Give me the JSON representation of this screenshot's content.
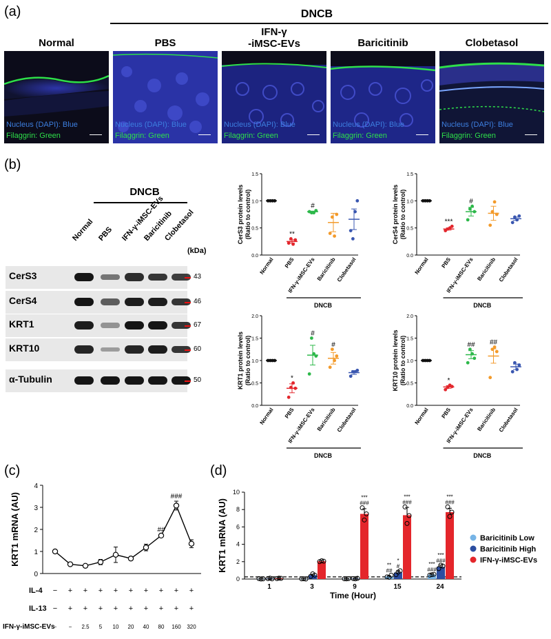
{
  "panel_labels": {
    "a": "(a)",
    "b": "(b)",
    "c": "(c)",
    "d": "(d)"
  },
  "panel_a": {
    "group_label": "DNCB",
    "columns": [
      "Normal",
      "PBS",
      "IFN-γ\n-iMSC-EVs",
      "Baricitinib",
      "Clobetasol"
    ],
    "caption_nucleus": "Nucleus (DAPI): Blue",
    "caption_filaggrin": "Filaggrin: Green",
    "scalebar": "100 μm"
  },
  "panel_b_blot": {
    "group_label": "DNCB",
    "lanes": [
      "Normal",
      "PBS",
      "IFN-γ-iMSC-EVs",
      "Baricitinib",
      "Clobetasol"
    ],
    "kda_label": "(kDa)",
    "rows": [
      {
        "name": "CerS3",
        "kda": "43",
        "intensity": [
          1.0,
          0.4,
          0.85,
          0.8,
          0.75
        ]
      },
      {
        "name": "CerS4",
        "kda": "46",
        "intensity": [
          1.0,
          0.55,
          0.95,
          0.95,
          0.8
        ]
      },
      {
        "name": "KRT1",
        "kda": "67",
        "intensity": [
          0.95,
          0.2,
          1.0,
          1.0,
          0.8
        ]
      },
      {
        "name": "KRT10",
        "kda": "60",
        "intensity": [
          0.9,
          0.15,
          0.9,
          0.95,
          0.8
        ]
      },
      {
        "name": "α-Tubulin",
        "kda": "50",
        "intensity": [
          1.0,
          1.0,
          1.0,
          1.0,
          1.0
        ]
      }
    ]
  },
  "colors": {
    "normal": "#111111",
    "pbs": "#e3262c",
    "ifn": "#2db84a",
    "bari": "#f39a2a",
    "clob": "#3a57b0",
    "bari_low": "#76b4e6",
    "bari_high": "#2b4da0",
    "ifn_bar": "#e4262b"
  },
  "chart_data": [
    {
      "type": "scatter",
      "id": "cers3",
      "ylabel": "CerS3 protein levels\n(Ratio to control)",
      "categories": [
        "Normal",
        "PBS",
        "IFN-γ-iMSC-EVs",
        "Baricitinib",
        "Clobetasol"
      ],
      "yticks": [
        "0.0",
        "0.5",
        "1.0",
        "1.5"
      ],
      "ylim": [
        0,
        1.5
      ],
      "group_label": "DNCB",
      "points": [
        [
          1,
          1,
          1,
          1
        ],
        [
          0.22,
          0.3,
          0.2,
          0.28
        ],
        [
          0.8,
          0.78,
          0.78,
          0.82
        ],
        [
          0.4,
          0.7,
          0.35,
          0.75
        ],
        [
          0.45,
          0.3,
          0.8,
          1.0
        ]
      ],
      "means": [
        1.0,
        0.25,
        0.8,
        0.6,
        0.66
      ],
      "sems": [
        0,
        0.03,
        0.01,
        0.17,
        0.19
      ],
      "annotations": [
        "",
        "**",
        "#",
        "",
        ""
      ]
    },
    {
      "type": "scatter",
      "id": "cers4",
      "ylabel": "CerS4 protein levels\n(Ratio to control)",
      "categories": [
        "Normal",
        "PBS",
        "IFN-γ-iMSC-EVs",
        "Baricitinib",
        "Clobetasol"
      ],
      "yticks": [
        "0.0",
        "0.5",
        "1.0",
        "1.5"
      ],
      "ylim": [
        0,
        1.5
      ],
      "group_label": "DNCB",
      "points": [
        [
          1,
          1,
          1,
          1
        ],
        [
          0.45,
          0.48,
          0.5,
          0.53
        ],
        [
          0.65,
          0.85,
          0.9,
          0.8
        ],
        [
          0.55,
          0.8,
          0.98,
          0.75
        ],
        [
          0.6,
          0.7,
          0.65,
          0.72
        ]
      ],
      "means": [
        1.0,
        0.48,
        0.8,
        0.77,
        0.67
      ],
      "sems": [
        0,
        0.02,
        0.08,
        0.13,
        0.03
      ],
      "annotations": [
        "",
        "***",
        "#",
        "",
        ""
      ]
    },
    {
      "type": "scatter",
      "id": "krt1",
      "ylabel": "KRT1 protein levels\n(Ratio to control)",
      "categories": [
        "Normal",
        "PBS",
        "IFN-γ-iMSC-EVs",
        "Baricitinib",
        "Clobetasol"
      ],
      "yticks": [
        "0.0",
        "0.5",
        "1.0",
        "1.5",
        "2.0"
      ],
      "ylim": [
        0,
        2.0
      ],
      "group_label": "DNCB",
      "points": [
        [
          1,
          1,
          1,
          1
        ],
        [
          0.18,
          0.4,
          0.5,
          0.38
        ],
        [
          0.7,
          1.5,
          1.15,
          1.1
        ],
        [
          0.85,
          1.25,
          1.0,
          1.1
        ],
        [
          0.65,
          0.75,
          0.75,
          0.78
        ]
      ],
      "means": [
        1.0,
        0.38,
        1.12,
        1.05,
        0.73
      ],
      "sems": [
        0,
        0.1,
        0.22,
        0.13,
        0.04
      ],
      "annotations": [
        "",
        "*",
        "#",
        "#",
        ""
      ]
    },
    {
      "type": "scatter",
      "id": "krt10",
      "ylabel": "KRT10 protein levels\n(Ratio to control)",
      "categories": [
        "Normal",
        "PBS",
        "IFN-γ-iMSC-EVs",
        "Baricitinib",
        "Clobetasol"
      ],
      "yticks": [
        "0.0",
        "0.5",
        "1.0",
        "1.5",
        "2.0"
      ],
      "ylim": [
        0,
        2.0
      ],
      "group_label": "DNCB",
      "points": [
        [
          1,
          1,
          1,
          1
        ],
        [
          0.35,
          0.4,
          0.45,
          0.42
        ],
        [
          0.95,
          1.25,
          1.15,
          1.05
        ],
        [
          0.62,
          1.25,
          1.3,
          1.2
        ],
        [
          0.75,
          0.95,
          0.8,
          0.9
        ]
      ],
      "means": [
        1.0,
        0.41,
        1.13,
        1.1,
        0.86
      ],
      "sems": [
        0,
        0.03,
        0.09,
        0.16,
        0.06
      ],
      "annotations": [
        "",
        "*",
        "##",
        "##",
        ""
      ]
    },
    {
      "type": "line",
      "id": "c",
      "ylabel": "KRT1 mRNA (AU)",
      "yticks": [
        "0",
        "1",
        "2",
        "3",
        "4"
      ],
      "ylim": [
        0,
        4
      ],
      "values": [
        1.0,
        0.42,
        0.35,
        0.52,
        0.85,
        0.68,
        1.18,
        1.72,
        3.08,
        1.35
      ],
      "errors": [
        0.02,
        0.02,
        0.05,
        0.12,
        0.35,
        0.08,
        0.15,
        0.05,
        0.2,
        0.18
      ],
      "annotations": [
        "",
        "",
        "",
        "",
        "",
        "",
        "",
        "##",
        "###",
        ""
      ],
      "row_labels": [
        "IL-4",
        "IL-13",
        "IFN-γ-iMSC-EVs"
      ],
      "il4": [
        "−",
        "+",
        "+",
        "+",
        "+",
        "+",
        "+",
        "+",
        "+",
        "+"
      ],
      "il13": [
        "−",
        "+",
        "+",
        "+",
        "+",
        "+",
        "+",
        "+",
        "+",
        "+"
      ],
      "doses": [
        "−",
        "−",
        "2.5",
        "5",
        "10",
        "20",
        "40",
        "80",
        "160",
        "320"
      ]
    },
    {
      "type": "bar",
      "id": "d",
      "ylabel": "KRT1 mRNA (AU)",
      "xlabel": "Time  (Hour)",
      "categories": [
        "1",
        "3",
        "9",
        "15",
        "24"
      ],
      "yticks": [
        "0",
        "2",
        "4",
        "6",
        "8",
        "10"
      ],
      "ylim": [
        0,
        10
      ],
      "series": [
        {
          "name": "Baricitinib Low",
          "values": [
            0.02,
            0.02,
            0.03,
            0.3,
            0.5
          ],
          "errors": [
            0.01,
            0.01,
            0.01,
            0.05,
            0.05
          ],
          "annotations": [
            "",
            "",
            "",
            "**\n##",
            "***\n###"
          ]
        },
        {
          "name": "Baricitinib High",
          "values": [
            0.05,
            0.45,
            0.05,
            0.75,
            1.4
          ],
          "errors": [
            0.02,
            0.1,
            0.02,
            0.15,
            0.2
          ],
          "annotations": [
            "",
            "",
            "",
            "*\n#",
            "***\n###"
          ]
        },
        {
          "name": "IFN-γ-iMSC-EVs",
          "values": [
            0.08,
            2.05,
            7.5,
            7.35,
            7.7
          ],
          "errors": [
            0.02,
            0.1,
            0.6,
            0.9,
            0.45
          ],
          "annotations": [
            "",
            "",
            "***\n###",
            "***\n###",
            "***\n###"
          ]
        }
      ],
      "points": [
        [
          [
            0.05,
            0.0,
            0.02
          ],
          [
            0.02,
            0.03,
            0.0
          ],
          [
            0.03,
            0.02,
            0.05
          ],
          [
            0.25,
            0.2,
            0.45
          ],
          [
            0.45,
            0.5,
            0.55
          ]
        ],
        [
          [
            0.05,
            0.1,
            0.02
          ],
          [
            0.3,
            0.6,
            0.45
          ],
          [
            0.05,
            0.02,
            0.08
          ],
          [
            0.5,
            0.8,
            0.95
          ],
          [
            1.2,
            1.6,
            1.5
          ]
        ],
        [
          [
            0.05,
            0.1,
            0.08
          ],
          [
            2.0,
            2.1,
            2.05
          ],
          [
            8.2,
            6.8,
            7.5
          ],
          [
            8.3,
            6.4,
            7.3
          ],
          [
            8.3,
            7.2,
            7.7
          ]
        ]
      ],
      "dashed_y": 0.25
    }
  ]
}
